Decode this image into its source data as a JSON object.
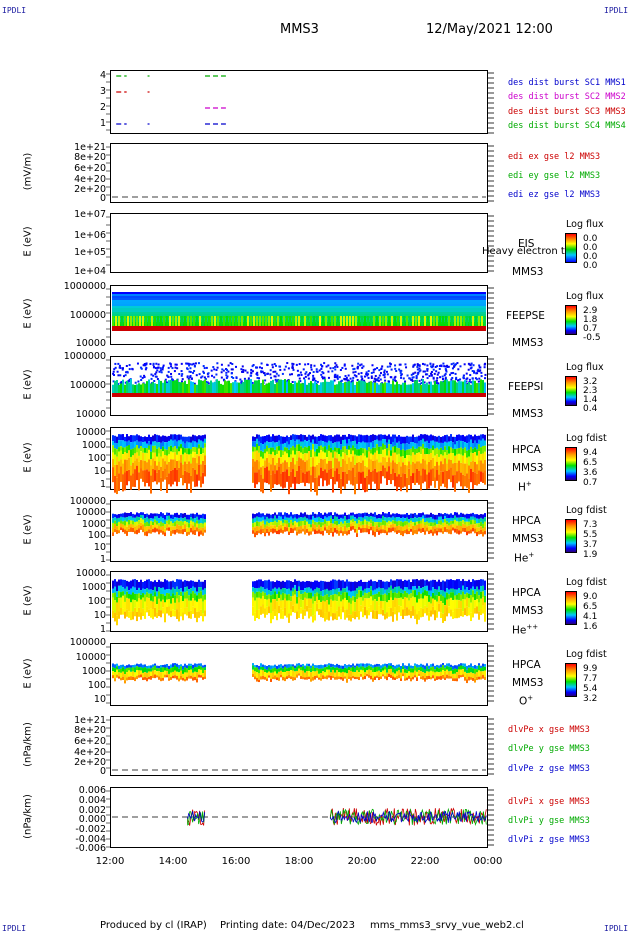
{
  "corners": {
    "tl": "IPDLI",
    "tr": "IPDLI",
    "bl": "IPDLI",
    "br": "IPDLI"
  },
  "header": {
    "spacecraft": "MMS3",
    "datetime": "12/May/2021 12:00"
  },
  "footer": {
    "produced": "Produced by cl (IRAP)",
    "printing": "Printing date: 04/Dec/2023",
    "file": "mms_mms3_srvy_vue_web2.cl"
  },
  "xaxis": {
    "ticks": [
      "12:00",
      "14:00",
      "16:00",
      "18:00",
      "20:00",
      "22:00",
      "00:00"
    ]
  },
  "colors": {
    "red": "#cc0000",
    "green": "#00aa00",
    "blue": "#0000cc",
    "magenta": "#cc00cc"
  },
  "panels": {
    "p1": {
      "yticks": [
        "4",
        "3",
        "2",
        "1"
      ],
      "legend": [
        "des dist burst SC1 MMS1",
        "des dist burst SC2 MMS2",
        "des dist burst SC3 MMS3",
        "des dist burst SC4 MMS4"
      ]
    },
    "p2": {
      "ylabel": "(mV/m)",
      "yticks": [
        "1e+21",
        "8e+20",
        "6e+20",
        "4e+20",
        "2e+20",
        "0"
      ],
      "legend": [
        "edi ex gse l2 MMS3",
        "edi ey gse l2 MMS3",
        "edi ez gse l2 MMS3"
      ]
    },
    "p3": {
      "ylabel": "E (eV)",
      "yticks": [
        "1e+07",
        "1e+06",
        "1e+05",
        "1e+04"
      ],
      "label1": "EIS",
      "label2": "Heavy electron to",
      "label3": "MMS3",
      "cbtitle": "Log flux",
      "cbvals": [
        "0.0",
        "0.0",
        "0.0",
        "0.0"
      ]
    },
    "p4": {
      "ylabel": "E (eV)",
      "yticks": [
        "1000000",
        "100000",
        "10000"
      ],
      "label1": "FEEPSE",
      "label2": "MMS3",
      "cbtitle": "Log flux",
      "cbvals": [
        "2.9",
        "1.8",
        "0.7",
        "-0.5"
      ]
    },
    "p5": {
      "ylabel": "E (eV)",
      "yticks": [
        "1000000",
        "100000",
        "10000"
      ],
      "label1": "FEEPSI",
      "label2": "MMS3",
      "cbtitle": "Log flux",
      "cbvals": [
        "3.2",
        "2.3",
        "1.4",
        "0.4"
      ]
    },
    "p6": {
      "ylabel": "E (eV)",
      "yticks": [
        "10000",
        "1000",
        "100",
        "10",
        "1"
      ],
      "label1": "HPCA",
      "label2": "MMS3",
      "species": "H",
      "cbtitle": "Log fdist",
      "cbvals": [
        "9.4",
        "6.5",
        "3.6",
        "0.7"
      ]
    },
    "p7": {
      "ylabel": "E (eV)",
      "yticks": [
        "100000",
        "10000",
        "1000",
        "100",
        "10",
        "1"
      ],
      "label1": "HPCA",
      "label2": "MMS3",
      "species": "He",
      "cbtitle": "Log fdist",
      "cbvals": [
        "7.3",
        "5.5",
        "3.7",
        "1.9"
      ]
    },
    "p8": {
      "ylabel": "E (eV)",
      "yticks": [
        "10000",
        "1000",
        "100",
        "10",
        "1"
      ],
      "label1": "HPCA",
      "label2": "MMS3",
      "species": "He",
      "cbtitle": "Log fdist",
      "cbvals": [
        "9.0",
        "6.5",
        "4.1",
        "1.6"
      ]
    },
    "p9": {
      "ylabel": "E (eV)",
      "yticks": [
        "100000",
        "10000",
        "1000",
        "100",
        "10"
      ],
      "label1": "HPCA",
      "label2": "MMS3",
      "species": "O",
      "cbtitle": "Log fdist",
      "cbvals": [
        "9.9",
        "7.7",
        "5.4",
        "3.2"
      ]
    },
    "p10": {
      "ylabel": "(nPa/km)",
      "yticks": [
        "1e+21",
        "8e+20",
        "6e+20",
        "4e+20",
        "2e+20",
        "0"
      ],
      "legend": [
        "dlvPe x gse MMS3",
        "dlvPe y gse MMS3",
        "dlvPe z gse MMS3"
      ]
    },
    "p11": {
      "ylabel": "(nPa/km)",
      "yticks": [
        "0.006",
        "0.004",
        "0.002",
        "0.000",
        "-0.002",
        "-0.004",
        "-0.006"
      ],
      "legend": [
        "dlvPi x gse MMS3",
        "dlvPi y gse MMS3",
        "dlvPi z gse MMS3"
      ]
    }
  },
  "superscripts": {
    "p6": "+",
    "p7": "+",
    "p8": "++",
    "p9": "+"
  },
  "chart_data": {
    "type": "heatmap",
    "x_range": [
      "12:00",
      "00:00"
    ],
    "burst_segments": [
      {
        "sc": "SC4",
        "row": 4,
        "intervals": [
          [
            "12:10",
            "12:30"
          ],
          [
            "13:10",
            "13:12"
          ],
          [
            "15:00",
            "15:40"
          ]
        ]
      },
      {
        "sc": "SC2",
        "row": 3,
        "intervals": [
          [
            "12:10",
            "12:30"
          ],
          [
            "13:10",
            "13:12"
          ]
        ]
      },
      {
        "sc": "SC3",
        "row": 2,
        "intervals": [
          [
            "15:00",
            "15:40"
          ]
        ]
      },
      {
        "sc": "SC1",
        "row": 1,
        "intervals": [
          [
            "12:10",
            "12:30"
          ],
          [
            "13:10",
            "13:12"
          ],
          [
            "15:00",
            "15:40"
          ]
        ]
      }
    ],
    "hpca_data_gap": [
      "15:00",
      "16:30"
    ],
    "dlvPi_intervals": [
      [
        "14:00",
        "15:00"
      ],
      [
        "19:00",
        "00:00"
      ]
    ]
  }
}
